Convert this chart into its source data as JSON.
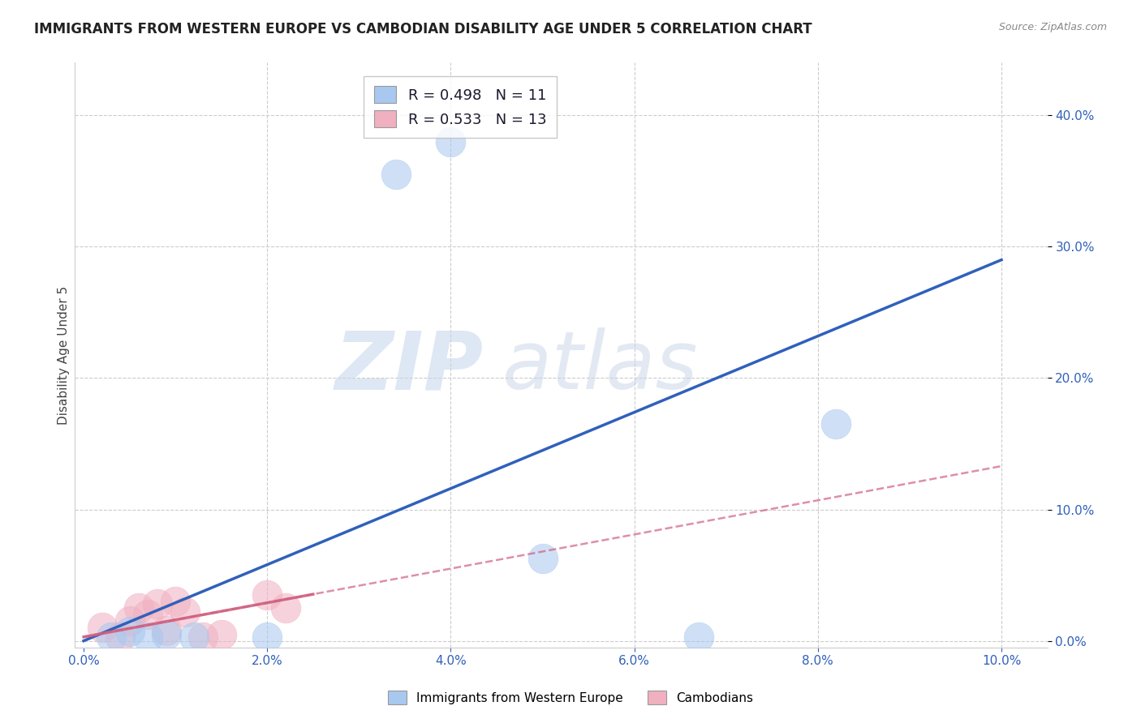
{
  "title": "IMMIGRANTS FROM WESTERN EUROPE VS CAMBODIAN DISABILITY AGE UNDER 5 CORRELATION CHART",
  "source": "Source: ZipAtlas.com",
  "ylabel": "Disability Age Under 5",
  "xlim": [
    -0.001,
    0.105
  ],
  "ylim": [
    -0.005,
    0.44
  ],
  "xticks": [
    0.0,
    0.02,
    0.04,
    0.06,
    0.08,
    0.1
  ],
  "yticks": [
    0.0,
    0.1,
    0.2,
    0.3,
    0.4
  ],
  "blue_points": [
    [
      0.003,
      0.003
    ],
    [
      0.005,
      0.007
    ],
    [
      0.007,
      0.003
    ],
    [
      0.009,
      0.005
    ],
    [
      0.012,
      0.003
    ],
    [
      0.02,
      0.003
    ],
    [
      0.034,
      0.355
    ],
    [
      0.04,
      0.38
    ],
    [
      0.05,
      0.063
    ],
    [
      0.067,
      0.003
    ],
    [
      0.082,
      0.165
    ]
  ],
  "pink_points": [
    [
      0.002,
      0.01
    ],
    [
      0.004,
      0.003
    ],
    [
      0.005,
      0.015
    ],
    [
      0.006,
      0.025
    ],
    [
      0.007,
      0.02
    ],
    [
      0.008,
      0.028
    ],
    [
      0.009,
      0.008
    ],
    [
      0.01,
      0.03
    ],
    [
      0.011,
      0.022
    ],
    [
      0.013,
      0.003
    ],
    [
      0.015,
      0.005
    ],
    [
      0.02,
      0.035
    ],
    [
      0.022,
      0.025
    ]
  ],
  "blue_line_x": [
    0.0,
    0.1
  ],
  "blue_line_y": [
    0.0,
    0.29
  ],
  "pink_line_x": [
    0.0,
    0.1
  ],
  "pink_line_y": [
    0.003,
    0.133
  ],
  "blue_color": "#a8c8f0",
  "pink_color": "#f0b0c0",
  "blue_line_color": "#3060bb",
  "pink_line_color": "#d06080",
  "watermark_zip": "ZIP",
  "watermark_atlas": "atlas",
  "legend_r_blue": "R = 0.498",
  "legend_n_blue": "N = 11",
  "legend_r_pink": "R = 0.533",
  "legend_n_pink": "N = 13",
  "title_fontsize": 12,
  "axis_label_fontsize": 11,
  "tick_fontsize": 11,
  "grid_color": "#cccccc",
  "background_color": "#ffffff"
}
